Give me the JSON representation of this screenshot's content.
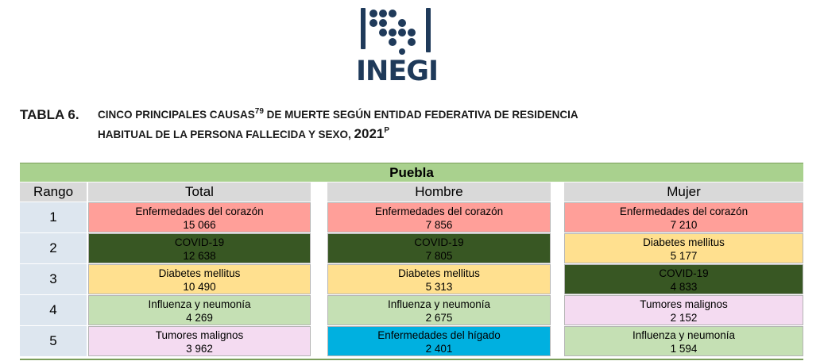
{
  "logo": {
    "text": "INEGI",
    "color": "#1f3a5a"
  },
  "title": {
    "number": "TABLA 6.",
    "line1": "CINCO PRINCIPALES CAUSAS",
    "sup1": "79",
    "line1b": " DE MUERTE SEGÚN ENTIDAD FEDERATIVA DE RESIDENCIA",
    "line2": "HABITUAL DE LA PERSONA FALLECIDA Y SEXO, ",
    "year": "2021",
    "sup2": "P"
  },
  "table": {
    "region": "Puebla",
    "headers": {
      "rank": "Rango",
      "total": "Total",
      "male": "Hombre",
      "female": "Mujer"
    },
    "rows": [
      {
        "rank": "1",
        "total": {
          "cause": "Enfermedades del corazón",
          "value": "15 066",
          "color": "#ff9f99"
        },
        "male": {
          "cause": "Enfermedades del corazón",
          "value": "7 856",
          "color": "#ff9f99"
        },
        "female": {
          "cause": "Enfermedades del corazón",
          "value": "7 210",
          "color": "#ff9f99"
        }
      },
      {
        "rank": "2",
        "total": {
          "cause": "COVID-19",
          "value": "12 638",
          "color": "#385723"
        },
        "male": {
          "cause": "COVID-19",
          "value": "7 805",
          "color": "#385723"
        },
        "female": {
          "cause": "Diabetes mellitus",
          "value": "5 177",
          "color": "#ffe08f"
        }
      },
      {
        "rank": "3",
        "total": {
          "cause": "Diabetes mellitus",
          "value": "10 490",
          "color": "#ffe08f"
        },
        "male": {
          "cause": "Diabetes mellitus",
          "value": "5 313",
          "color": "#ffe08f"
        },
        "female": {
          "cause": "COVID-19",
          "value": "4 833",
          "color": "#385723"
        }
      },
      {
        "rank": "4",
        "total": {
          "cause": "Influenza y neumonía",
          "value": "4 269",
          "color": "#c5e0b4"
        },
        "male": {
          "cause": "Influenza y neumonía",
          "value": "2 675",
          "color": "#c5e0b4"
        },
        "female": {
          "cause": "Tumores malignos",
          "value": "2 152",
          "color": "#f4dbf1"
        }
      },
      {
        "rank": "5",
        "total": {
          "cause": "Tumores malignos",
          "value": "3 962",
          "color": "#f4dbf1"
        },
        "male": {
          "cause": "Enfermedades del hígado",
          "value": "2 401",
          "color": "#00b0e0"
        },
        "female": {
          "cause": "Influenza y neumonía",
          "value": "1 594",
          "color": "#c5e0b4"
        }
      }
    ]
  },
  "colors": {
    "region_header": "#a9d18e",
    "column_header": "#d9d9d9",
    "rank_cell": "#dde6ef"
  }
}
